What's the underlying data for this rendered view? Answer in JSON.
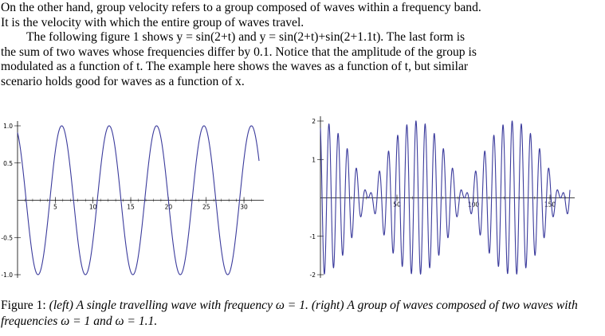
{
  "text": {
    "p1_l1": "On the other hand, group velocity refers to a group composed of waves within a frequency band.",
    "p1_l2": "It is the velocity with which the entire group of waves travel.",
    "p2_l1": "The following figure 1 shows y = sin(2+t) and y = sin(2+t)+sin(2+1.1t). The last form is",
    "p2_l2": "the sum of two waves whose frequencies differ by 0.1. Notice that the amplitude of the group is",
    "p2_l3": "modulated as a function of t. The example here shows the waves as a function of t, but similar",
    "p2_l4": "scenario holds good for waves as a function of x."
  },
  "caption": {
    "label": "Figure 1:",
    "text": "(left) A single travelling wave with frequency ω = 1. (right) A group of waves composed of two waves with frequencies ω = 1 and ω = 1.1."
  },
  "chart_data": [
    {
      "type": "line",
      "function": "sin(2+t)",
      "xlim": [
        0,
        32
      ],
      "ylim": [
        -1.0,
        1.0
      ],
      "xticks": [
        "5",
        "10",
        "15",
        "20",
        "25",
        "30"
      ],
      "yticks": [
        "1.0",
        "0.5",
        "-0.5",
        "-1.0"
      ],
      "line_color": "#3b3b9c"
    },
    {
      "type": "line",
      "function": "sin(2+t)+sin(2+1.1t)",
      "xlim": [
        0,
        163
      ],
      "ylim": [
        -2,
        2
      ],
      "xticks": [
        "50",
        "100",
        "150"
      ],
      "yticks": [
        "2",
        "1",
        "-1",
        "-2"
      ],
      "line_color": "#3b3b9c"
    }
  ]
}
